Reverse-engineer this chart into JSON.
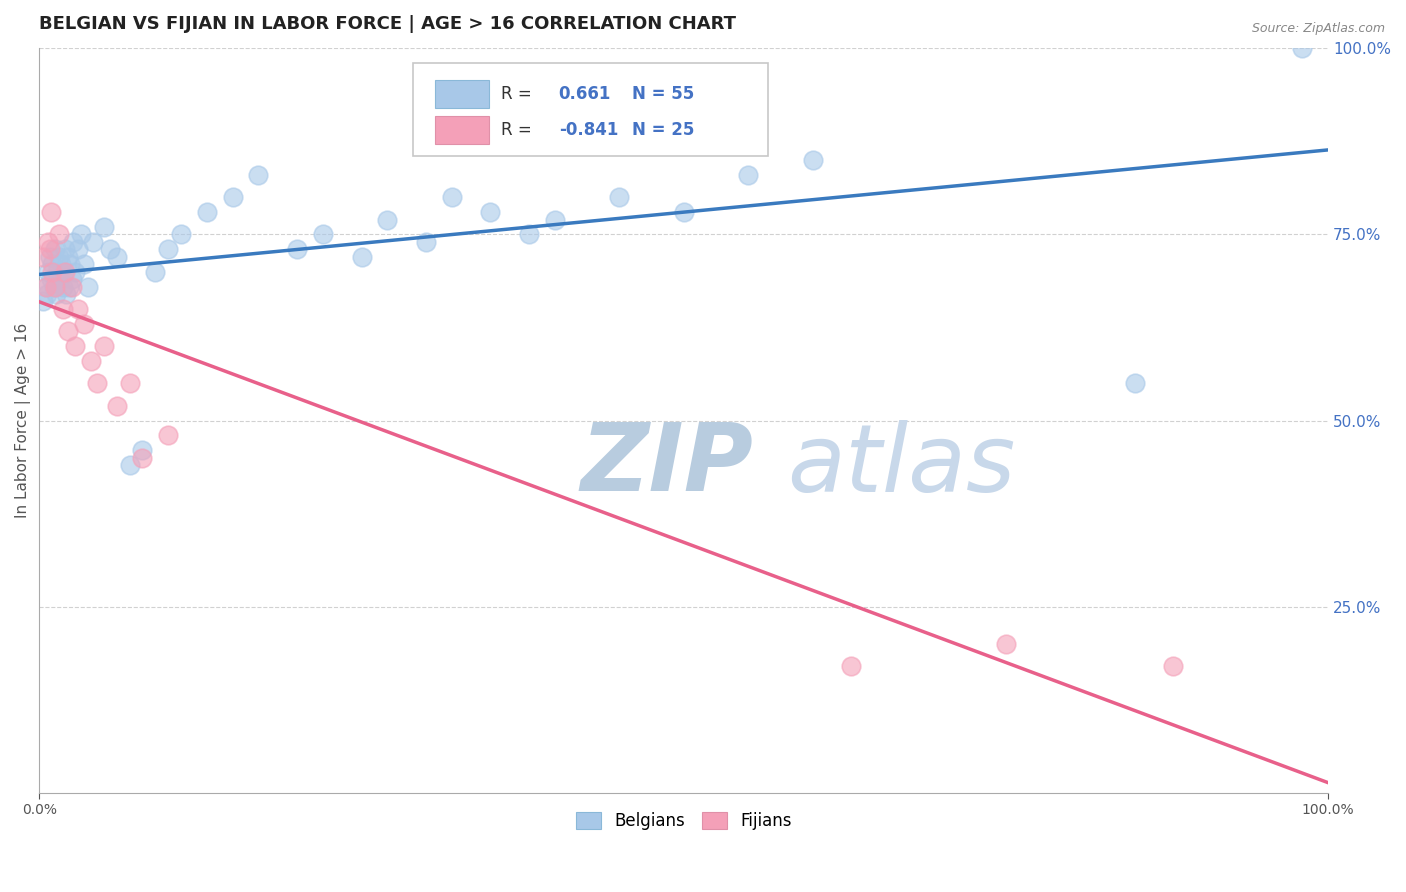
{
  "title": "BELGIAN VS FIJIAN IN LABOR FORCE | AGE > 16 CORRELATION CHART",
  "source_text": "Source: ZipAtlas.com",
  "ylabel": "In Labor Force | Age > 16",
  "belgian_R": 0.661,
  "belgian_N": 55,
  "fijian_R": -0.841,
  "fijian_N": 25,
  "blue_color": "#a8c8e8",
  "pink_color": "#f4a0b8",
  "blue_line_color": "#3a7abf",
  "pink_line_color": "#e8608a",
  "watermark_color": "#d0dff0",
  "background_color": "#ffffff",
  "grid_color": "#cccccc",
  "belgian_x": [
    0.3,
    0.5,
    0.6,
    0.7,
    0.8,
    0.9,
    1.0,
    1.1,
    1.2,
    1.3,
    1.4,
    1.5,
    1.6,
    1.7,
    1.8,
    1.9,
    2.0,
    2.1,
    2.2,
    2.3,
    2.4,
    2.5,
    2.6,
    2.8,
    3.0,
    3.2,
    3.5,
    3.8,
    4.2,
    5.0,
    5.5,
    6.0,
    7.0,
    8.0,
    9.0,
    10.0,
    11.0,
    13.0,
    15.0,
    17.0,
    20.0,
    22.0,
    25.0,
    27.0,
    30.0,
    32.0,
    35.0,
    38.0,
    40.0,
    45.0,
    50.0,
    55.0,
    60.0,
    85.0,
    98.0
  ],
  "belgian_y": [
    66.0,
    68.0,
    67.0,
    70.0,
    72.0,
    69.0,
    71.0,
    68.0,
    73.0,
    67.0,
    70.0,
    72.0,
    69.0,
    71.0,
    68.0,
    70.0,
    73.0,
    67.0,
    72.0,
    68.0,
    71.0,
    69.0,
    74.0,
    70.0,
    73.0,
    75.0,
    71.0,
    68.0,
    74.0,
    76.0,
    73.0,
    72.0,
    44.0,
    46.0,
    70.0,
    73.0,
    75.0,
    78.0,
    80.0,
    83.0,
    73.0,
    75.0,
    72.0,
    77.0,
    74.0,
    80.0,
    78.0,
    75.0,
    77.0,
    80.0,
    78.0,
    83.0,
    85.0,
    55.0,
    100.0
  ],
  "fijian_x": [
    0.3,
    0.5,
    0.7,
    0.8,
    0.9,
    1.0,
    1.2,
    1.5,
    1.8,
    2.0,
    2.2,
    2.5,
    2.8,
    3.0,
    3.5,
    4.0,
    4.5,
    5.0,
    6.0,
    7.0,
    8.0,
    10.0,
    63.0,
    75.0,
    88.0
  ],
  "fijian_y": [
    72.0,
    68.0,
    74.0,
    73.0,
    78.0,
    70.0,
    68.0,
    75.0,
    65.0,
    70.0,
    62.0,
    68.0,
    60.0,
    65.0,
    63.0,
    58.0,
    55.0,
    60.0,
    52.0,
    55.0,
    45.0,
    48.0,
    17.0,
    20.0,
    17.0
  ],
  "xlim": [
    0,
    100
  ],
  "ylim": [
    0,
    100
  ],
  "xtick_labels": [
    "0.0%",
    "100.0%"
  ],
  "xtick_positions": [
    0,
    100
  ],
  "ytick_right_labels": [
    "25.0%",
    "50.0%",
    "75.0%",
    "100.0%"
  ],
  "ytick_right_positions": [
    25,
    50,
    75,
    100
  ],
  "legend_labels": [
    "Belgians",
    "Fijians"
  ],
  "title_fontsize": 13,
  "axis_label_fontsize": 11,
  "tick_fontsize": 10,
  "legend_fontsize": 12
}
